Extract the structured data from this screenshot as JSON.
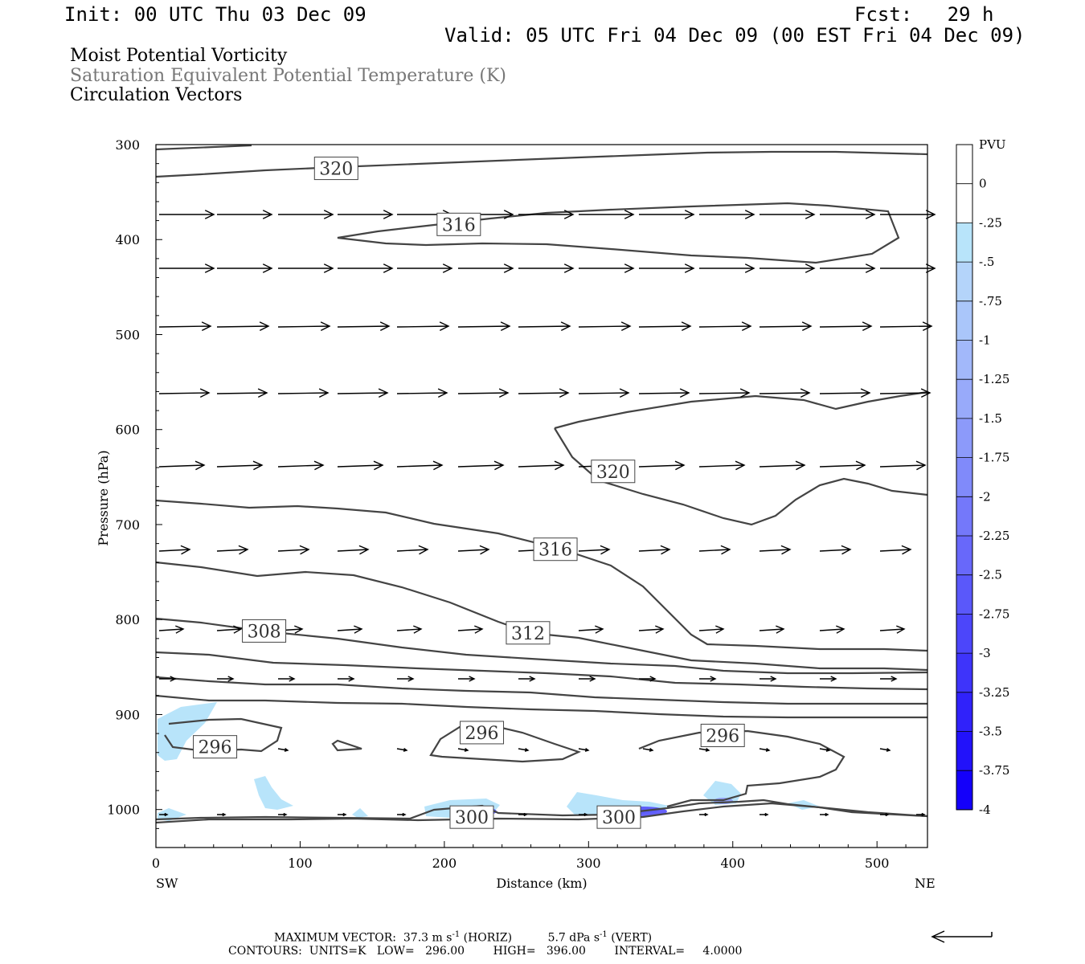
{
  "header": {
    "init": "Init: 00 UTC Thu 03 Dec 09",
    "fcst": "Fcst:   29 h",
    "valid": "Valid: 05 UTC Fri 04 Dec 09 (00 EST Fri 04 Dec 09)",
    "line1": "Moist Potential Vorticity",
    "line2": "Saturation Equivalent Potential Temperature (K)",
    "line3": "Circulation Vectors"
  },
  "footer": {
    "max_vector_label": "MAXIMUM VECTOR:",
    "horiz": "37.3 m s",
    "horiz_unit": "(HORIZ)",
    "vert": "5.7 dPa s",
    "vert_unit": "(VERT)",
    "exp": "-1",
    "contours": "CONTOURS:  UNITS=K   LOW=   296.00        HIGH=   396.00        INTERVAL=     4.0000"
  },
  "chart_data": {
    "type": "cross-section",
    "xlabel": "Distance (km)",
    "ylabel": "Pressure (hPa)",
    "xlim": [
      0,
      535
    ],
    "ylim": [
      1040,
      300
    ],
    "x_ticks": [
      "0",
      "100",
      "200",
      "300",
      "400",
      "500"
    ],
    "y_ticks": [
      "300",
      "400",
      "500",
      "600",
      "700",
      "800",
      "900",
      "1000"
    ],
    "left_end_label": "SW",
    "right_end_label": "NE",
    "colorbar": {
      "title": "PVU",
      "labels": [
        "0",
        "-.25",
        "-.5",
        "-.75",
        "-1",
        "-1.25",
        "-1.5",
        "-1.75",
        "-2",
        "-2.25",
        "-2.5",
        "-2.75",
        "-3",
        "-3.25",
        "-3.5",
        "-3.75",
        "-4"
      ],
      "colors": [
        "#ffffff",
        "#ffffff",
        "#b8e4fa",
        "#b4d4fa",
        "#aac6fa",
        "#a2b8fa",
        "#98aafa",
        "#8c9afa",
        "#808afa",
        "#7478fa",
        "#6868fa",
        "#5a58fa",
        "#4c46fa",
        "#3e34fa",
        "#3022fa",
        "#2212fa",
        "#1400fa"
      ]
    },
    "contour_labels": [
      {
        "text": "320",
        "x": 125,
        "p": 325
      },
      {
        "text": "316",
        "x": 210,
        "p": 384
      },
      {
        "text": "320",
        "x": 317,
        "p": 644
      },
      {
        "text": "316",
        "x": 277,
        "p": 726
      },
      {
        "text": "308",
        "x": 75,
        "p": 812
      },
      {
        "text": "312",
        "x": 258,
        "p": 814
      },
      {
        "text": "296",
        "x": 226,
        "p": 919
      },
      {
        "text": "296",
        "x": 393,
        "p": 922
      },
      {
        "text": "296",
        "x": 41,
        "p": 934
      },
      {
        "text": "300",
        "x": 219,
        "p": 1008
      },
      {
        "text": "300",
        "x": 321,
        "p": 1008
      }
    ],
    "pv_fill_color": "#b8e4fa",
    "pv_strong_color": "#4c46fa",
    "contour_color": "#444444",
    "vector_color": "#000000"
  },
  "vector_reference": {
    "direction": "left"
  }
}
